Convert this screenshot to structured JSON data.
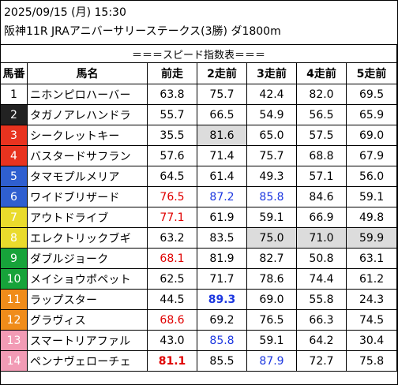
{
  "header": {
    "line1": "2025/09/15 (月) 15:30",
    "line2": "阪神11R JRAアニバーサリーステークス(3勝) ダ1800m"
  },
  "banner": "＝＝＝スピード指数表＝＝＝",
  "columns": [
    "馬番",
    "馬名",
    "前走",
    "2走前",
    "3走前",
    "4走前",
    "5走前"
  ],
  "colors": {
    "frame1": "#ffffff",
    "frame2": "#222222",
    "frame3": "#e8331f",
    "frame4": "#2f5fd0",
    "frame5": "#eadb2c",
    "frame6": "#17a33a",
    "frame7": "#f08c1a",
    "frame8": "#f29bb5",
    "red": "#e00000",
    "blue": "#1c37e0",
    "highlight": "#dcdcdc"
  },
  "rows": [
    {
      "num": "1",
      "name": "ニホンピロハーバー",
      "frame": "#ffffff",
      "numColor": "#000000",
      "vals": [
        "63.8",
        "75.7",
        "42.4",
        "82.0",
        "69.5"
      ],
      "styles": [
        "",
        "",
        "",
        "",
        ""
      ]
    },
    {
      "num": "2",
      "name": "タガノアレハンドラ",
      "frame": "#222222",
      "numColor": "#ffffff",
      "vals": [
        "55.7",
        "66.5",
        "54.9",
        "56.5",
        "65.9"
      ],
      "styles": [
        "",
        "",
        "",
        "",
        ""
      ]
    },
    {
      "num": "3",
      "name": "シークレットキー",
      "frame": "#e8331f",
      "numColor": "#ffffff",
      "vals": [
        "35.5",
        "81.6",
        "65.0",
        "57.5",
        "69.0"
      ],
      "styles": [
        "",
        "gray",
        "",
        "",
        ""
      ]
    },
    {
      "num": "4",
      "name": "バスタードサフラン",
      "frame": "#e8331f",
      "numColor": "#ffffff",
      "vals": [
        "57.6",
        "71.4",
        "75.7",
        "68.8",
        "67.9"
      ],
      "styles": [
        "",
        "",
        "",
        "",
        ""
      ]
    },
    {
      "num": "5",
      "name": "タマモプルメリア",
      "frame": "#2f5fd0",
      "numColor": "#ffffff",
      "vals": [
        "64.5",
        "61.4",
        "49.3",
        "57.1",
        "56.0"
      ],
      "styles": [
        "",
        "",
        "",
        "",
        ""
      ]
    },
    {
      "num": "6",
      "name": "ワイドブリザード",
      "frame": "#2f5fd0",
      "numColor": "#ffffff",
      "vals": [
        "76.5",
        "87.2",
        "85.8",
        "84.6",
        "59.1"
      ],
      "styles": [
        "red",
        "blue",
        "blue",
        "",
        ""
      ]
    },
    {
      "num": "7",
      "name": "アウトドライブ",
      "frame": "#eadb2c",
      "numColor": "#ffffff",
      "vals": [
        "77.1",
        "61.9",
        "59.1",
        "66.9",
        "49.8"
      ],
      "styles": [
        "red",
        "",
        "",
        "",
        ""
      ]
    },
    {
      "num": "8",
      "name": "エレクトリックブギ",
      "frame": "#eadb2c",
      "numColor": "#ffffff",
      "vals": [
        "63.2",
        "83.5",
        "75.0",
        "71.0",
        "59.9"
      ],
      "styles": [
        "",
        "",
        "gray",
        "gray",
        "gray"
      ]
    },
    {
      "num": "9",
      "name": "ダブルジョーク",
      "frame": "#17a33a",
      "numColor": "#ffffff",
      "vals": [
        "68.1",
        "81.9",
        "82.7",
        "50.8",
        "63.1"
      ],
      "styles": [
        "red",
        "",
        "",
        "",
        ""
      ]
    },
    {
      "num": "10",
      "name": "メイショウポペット",
      "frame": "#17a33a",
      "numColor": "#ffffff",
      "vals": [
        "62.5",
        "71.7",
        "78.6",
        "74.4",
        "61.2"
      ],
      "styles": [
        "",
        "",
        "",
        "",
        ""
      ]
    },
    {
      "num": "11",
      "name": "ラップスター",
      "frame": "#f08c1a",
      "numColor": "#ffffff",
      "vals": [
        "44.5",
        "89.3",
        "69.0",
        "55.8",
        "24.3"
      ],
      "styles": [
        "",
        "blue bold",
        "",
        "",
        ""
      ]
    },
    {
      "num": "12",
      "name": "グラヴィス",
      "frame": "#f08c1a",
      "numColor": "#ffffff",
      "vals": [
        "68.6",
        "69.2",
        "76.5",
        "66.3",
        "74.5"
      ],
      "styles": [
        "red",
        "",
        "",
        "",
        ""
      ]
    },
    {
      "num": "13",
      "name": "スマートリアファル",
      "frame": "#f29bb5",
      "numColor": "#ffffff",
      "vals": [
        "43.0",
        "85.8",
        "59.1",
        "64.2",
        "30.4"
      ],
      "styles": [
        "",
        "blue",
        "",
        "",
        ""
      ]
    },
    {
      "num": "14",
      "name": "ペンナヴェローチェ",
      "frame": "#f29bb5",
      "numColor": "#ffffff",
      "vals": [
        "81.1",
        "85.5",
        "87.9",
        "72.7",
        "75.8"
      ],
      "styles": [
        "red bold",
        "",
        "blue",
        "",
        ""
      ]
    }
  ]
}
